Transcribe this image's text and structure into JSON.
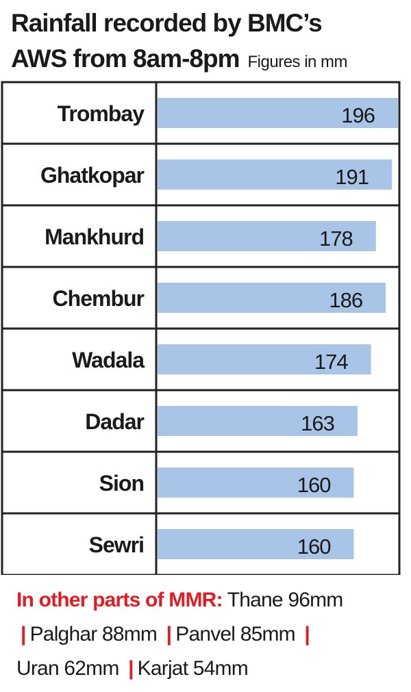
{
  "title": {
    "line1": "Rainfall recorded by BMC’s",
    "line2": "AWS from 8am-8pm",
    "subtitle": "Figures in mm"
  },
  "colors": {
    "bar": "#a8c4e6",
    "grid": "#222222",
    "accent": "#e31b23"
  },
  "chart_data": {
    "type": "bar",
    "orientation": "horizontal",
    "title": "Rainfall recorded by BMC’s AWS from 8am-8pm",
    "subtitle": "Figures in mm",
    "categories": [
      "Trombay",
      "Ghatkopar",
      "Mankhurd",
      "Chembur",
      "Wadala",
      "Dadar",
      "Sion",
      "Sewri"
    ],
    "values": [
      196,
      191,
      178,
      186,
      174,
      163,
      160,
      160
    ],
    "xlim": [
      0,
      196
    ],
    "grid": true,
    "legend": "none"
  },
  "footer": {
    "heading": "In other parts of MMR:",
    "separator": "|",
    "items": [
      "Thane 96mm",
      "Palghar 88mm",
      "Panvel 85mm",
      "Uran 62mm",
      "Karjat 54mm"
    ]
  }
}
